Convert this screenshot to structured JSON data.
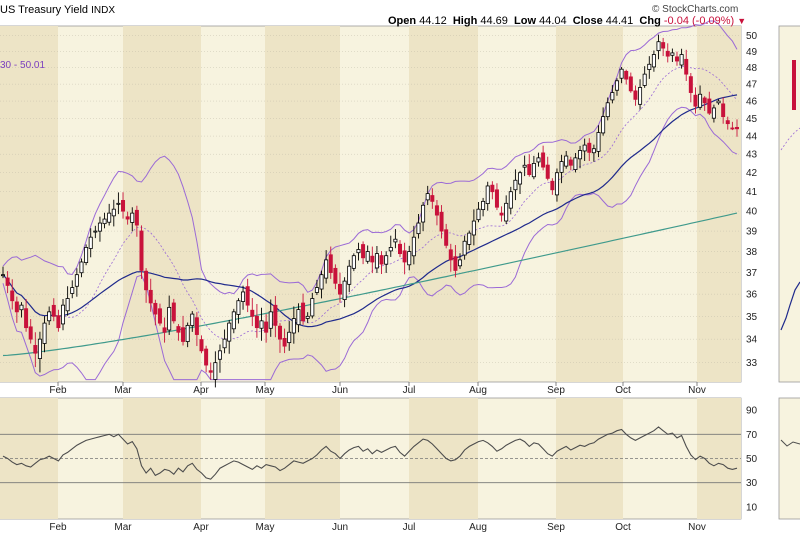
{
  "header": {
    "title_text": "US Treasury Yield",
    "exchange": "INDX",
    "open_label": "Open",
    "open_value": "44.12",
    "high_label": "High",
    "high_value": "44.69",
    "low_label": "Low",
    "low_value": "44.04",
    "close_label": "Close",
    "close_value": "44.41",
    "chg_label": "Chg",
    "chg_value": "-0.04 (-0.09%)",
    "chg_symbol": "▼",
    "source": "© StockCharts.com",
    "bb_fragment": "30 - 50.01"
  },
  "colors": {
    "background": "#f7f3df",
    "band": "#ede4c6",
    "up_candle": "#000000",
    "down_candle": "#c8123b",
    "bollinger": "#9b6ad6",
    "ma50": "#1f2a8c",
    "ma200": "#3f9a8c",
    "rsi": "#4d4d4d",
    "grid": "#bdb8a6"
  },
  "chart_data": [
    {
      "type": "line",
      "kind": "candlestick",
      "symbol": "US Treasury Yield",
      "x_ticks": [
        "Feb",
        "Mar",
        "Apr",
        "May",
        "Jun",
        "Jul",
        "Aug",
        "Sep",
        "Oct",
        "Nov"
      ],
      "y_ticks": [
        33,
        34,
        35,
        36,
        37,
        38,
        39,
        40,
        41,
        42,
        43,
        44,
        45,
        46,
        47,
        48,
        49,
        50
      ],
      "ylim": [
        32.2,
        50.6
      ],
      "y_scale": "log",
      "overlays": [
        "Bollinger Bands (20,2)",
        "50-day MA",
        "200-day MA"
      ],
      "closes": [
        36.9,
        36.4,
        35.7,
        35.2,
        35.5,
        34.5,
        34.0,
        33.4,
        34.0,
        34.7,
        35.2,
        35.0,
        34.5,
        35.5,
        35.8,
        36.3,
        36.9,
        37.5,
        38.2,
        38.7,
        39.0,
        39.4,
        39.6,
        39.9,
        40.1,
        40.4,
        40.0,
        39.6,
        39.9,
        39.3,
        37.1,
        36.2,
        35.6,
        35.1,
        34.7,
        34.3,
        35.4,
        34.8,
        34.3,
        33.9,
        34.6,
        35.1,
        34.2,
        33.5,
        32.9,
        32.6,
        33.0,
        33.5,
        34.0,
        34.7,
        35.2,
        35.7,
        36.1,
        35.5,
        35.0,
        34.5,
        34.8,
        34.3,
        35.2,
        34.6,
        34.0,
        33.7,
        34.3,
        34.9,
        35.3,
        34.8,
        35.0,
        35.8,
        36.3,
        36.9,
        37.6,
        37.0,
        36.5,
        36.0,
        36.6,
        37.3,
        37.8,
        38.1,
        37.7,
        38.0,
        37.5,
        37.9,
        37.4,
        37.8,
        38.2,
        38.6,
        37.9,
        37.5,
        38.0,
        38.7,
        39.4,
        40.3,
        40.9,
        40.5,
        39.8,
        39.0,
        38.3,
        37.6,
        37.1,
        37.6,
        38.5,
        38.9,
        39.5,
        40.1,
        40.5,
        41.3,
        41.0,
        40.2,
        39.8,
        40.4,
        41.0,
        41.6,
        42.0,
        42.4,
        41.9,
        42.5,
        42.8,
        42.3,
        41.7,
        41.1,
        42.0,
        42.6,
        42.9,
        42.4,
        42.8,
        43.2,
        43.5,
        43.1,
        43.3,
        44.2,
        45.1,
        45.9,
        46.5,
        47.2,
        47.9,
        47.3,
        46.6,
        46.1,
        46.8,
        47.6,
        48.2,
        48.8,
        49.6,
        49.2,
        48.7,
        48.9,
        48.4,
        48.8,
        47.6,
        46.5,
        45.7,
        46.4,
        45.9,
        45.3,
        45.6,
        46.0,
        45.1,
        44.7,
        44.45,
        44.41
      ]
    },
    {
      "type": "line",
      "name": "RSI",
      "y_ticks": [
        10,
        30,
        50,
        70,
        90
      ],
      "ylim": [
        0,
        100
      ],
      "reference_lines": [
        30,
        50,
        70
      ],
      "values": [
        52,
        50,
        47,
        45,
        46,
        44,
        43,
        46,
        49,
        50,
        52,
        50,
        48,
        53,
        55,
        58,
        61,
        63,
        65,
        66,
        67,
        68,
        69,
        70,
        68,
        70,
        66,
        62,
        64,
        58,
        44,
        38,
        42,
        36,
        38,
        41,
        40,
        37,
        42,
        39,
        44,
        46,
        41,
        38,
        34,
        33,
        37,
        42,
        44,
        46,
        48,
        47,
        45,
        43,
        41,
        44,
        42,
        45,
        44,
        43,
        40,
        42,
        45,
        48,
        47,
        46,
        48,
        50,
        53,
        57,
        60,
        56,
        54,
        50,
        54,
        57,
        59,
        60,
        56,
        58,
        54,
        57,
        55,
        57,
        59,
        60,
        55,
        52,
        56,
        60,
        63,
        66,
        65,
        62,
        58,
        54,
        50,
        48,
        49,
        52,
        57,
        60,
        62,
        64,
        65,
        63,
        60,
        56,
        58,
        61,
        63,
        65,
        66,
        64,
        60,
        63,
        62,
        58,
        54,
        52,
        56,
        58,
        60,
        57,
        59,
        61,
        60,
        62,
        63,
        66,
        68,
        70,
        71,
        73,
        74,
        70,
        67,
        65,
        67,
        69,
        71,
        73,
        76,
        73,
        70,
        71,
        67,
        69,
        60,
        53,
        49,
        52,
        50,
        46,
        44,
        46,
        45,
        42,
        41,
        42
      ]
    }
  ]
}
